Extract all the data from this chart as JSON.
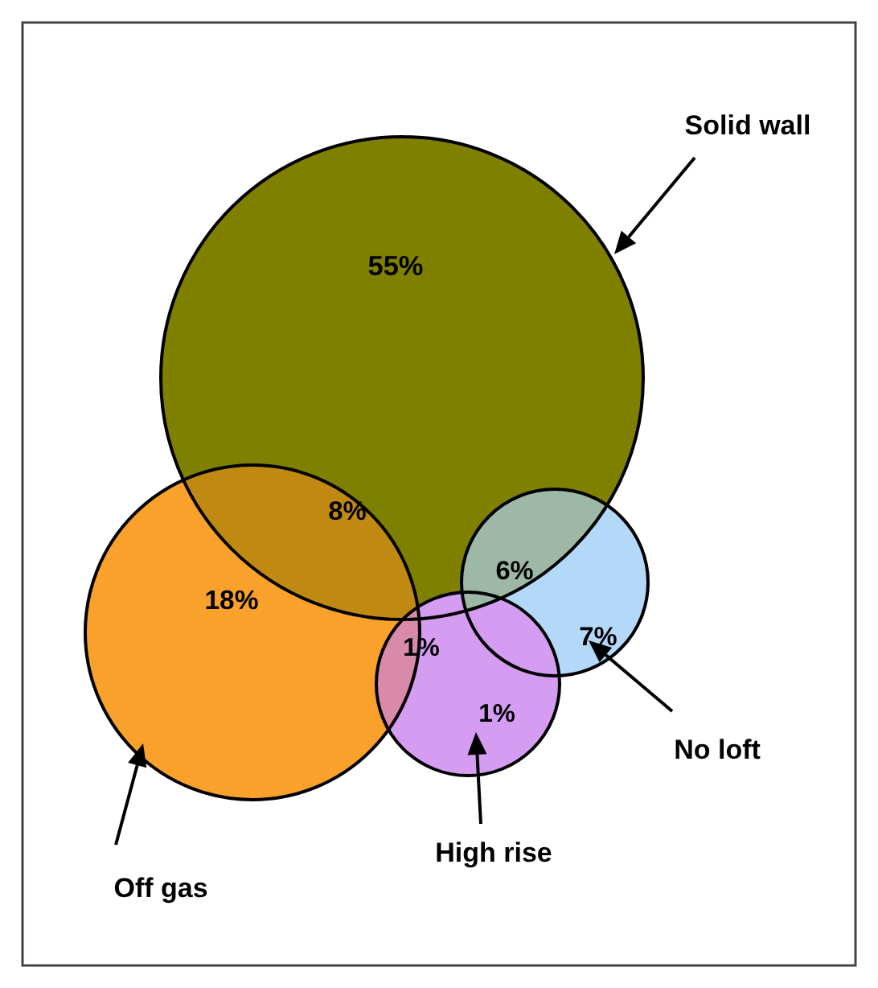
{
  "chart_data": {
    "type": "other",
    "categories": [
      null,
      null,
      null,
      null,
      null,
      null,
      null
    ],
    "values": [
      55,
      8,
      18,
      6,
      7,
      1,
      1
    ],
    "value_labels": [
      "55%",
      "8%",
      "18%",
      "6%",
      "7%",
      "1%",
      "1%"
    ],
    "colors": [
      "#7f7f00",
      "#c08a12",
      "#f9a12a",
      "#9db8a6",
      "#b4d8f8",
      "#d88aa8",
      "#d59df2"
    ],
    "annotations": [
      "Solid wall",
      "Off gas",
      "No loft",
      "High rise"
    ]
  }
}
